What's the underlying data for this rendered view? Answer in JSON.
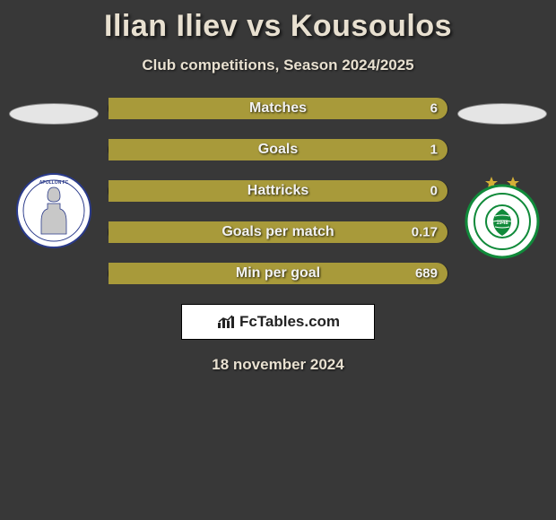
{
  "title": "Ilian Iliev vs Kousoulos",
  "subtitle": "Club competitions, Season 2024/2025",
  "date": "18 november 2024",
  "brand": "FcTables.com",
  "colors": {
    "left_fill": "#383838",
    "right_fill": "#a89a3a",
    "background": "#383838",
    "text": "#e8e0d0"
  },
  "left_club": {
    "name": "Apollon Limassol",
    "logo_bg": "#ffffff",
    "logo_accent": "#2a3a8a"
  },
  "right_club": {
    "name": "Omonia Nicosia",
    "logo_bg": "#ffffff",
    "logo_accent": "#108a3a",
    "star_color": "#d4af37"
  },
  "rows": [
    {
      "label": "Matches",
      "left": "",
      "right": "6",
      "left_pct": 0
    },
    {
      "label": "Goals",
      "left": "",
      "right": "1",
      "left_pct": 0
    },
    {
      "label": "Hattricks",
      "left": "",
      "right": "0",
      "left_pct": 0
    },
    {
      "label": "Goals per match",
      "left": "",
      "right": "0.17",
      "left_pct": 0
    },
    {
      "label": "Min per goal",
      "left": "",
      "right": "689",
      "left_pct": 0
    }
  ]
}
